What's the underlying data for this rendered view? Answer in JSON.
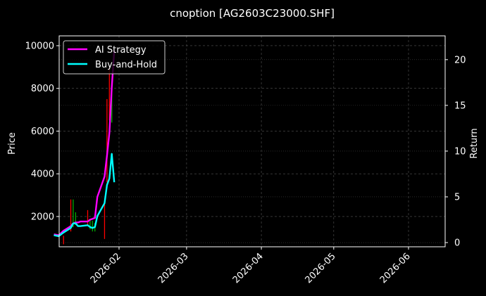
{
  "chart_data": {
    "type": "line",
    "title": "cnoption [AG2603C23000.SHF]",
    "xlabel": "",
    "ylabel": "Price",
    "ylabel_right": "Return",
    "ylim": [
      583,
      10460
    ],
    "ylim_right": [
      -0.46,
      22.6
    ],
    "x_tick_labels": [
      "2026-02",
      "2026-03",
      "2026-04",
      "2026-05",
      "2026-06"
    ],
    "y_ticks_left": [
      2000,
      4000,
      6000,
      8000,
      10000
    ],
    "y_ticks_right": [
      0,
      5,
      10,
      15,
      20
    ],
    "grid": true,
    "legend_position": "upper left",
    "background": "#000000",
    "series": [
      {
        "name": "AI Strategy",
        "color": "#ff00ff",
        "axis": "right",
        "x": [
          "2026-01-05",
          "2026-01-07",
          "2026-01-09",
          "2026-01-12",
          "2026-01-13",
          "2026-01-14",
          "2026-01-15",
          "2026-01-16",
          "2026-01-19",
          "2026-01-20",
          "2026-01-21",
          "2026-01-22",
          "2026-01-23",
          "2026-01-26",
          "2026-01-27",
          "2026-01-28",
          "2026-01-29",
          "2026-01-30"
        ],
        "values": [
          0.9,
          0.8,
          1.3,
          1.8,
          2.1,
          2.2,
          2.2,
          2.3,
          2.3,
          2.5,
          2.6,
          2.7,
          5.0,
          7.2,
          9.5,
          12.0,
          17.0,
          21.0
        ]
      },
      {
        "name": "Buy-and-Hold",
        "color": "#00ffff",
        "axis": "right",
        "x": [
          "2026-01-05",
          "2026-01-07",
          "2026-01-09",
          "2026-01-12",
          "2026-01-13",
          "2026-01-14",
          "2026-01-15",
          "2026-01-16",
          "2026-01-19",
          "2026-01-20",
          "2026-01-21",
          "2026-01-22",
          "2026-01-23",
          "2026-01-26",
          "2026-01-27",
          "2026-01-28",
          "2026-01-29",
          "2026-01-30"
        ],
        "values": [
          0.8,
          0.7,
          1.1,
          1.6,
          2.1,
          2.1,
          1.8,
          1.8,
          1.9,
          1.7,
          1.6,
          1.7,
          2.9,
          4.3,
          6.3,
          7.0,
          9.7,
          6.6
        ]
      }
    ],
    "candles": {
      "up_color": "#00aa00",
      "down_color": "#ff0000",
      "axis": "left",
      "items": [
        {
          "x": "2026-01-09",
          "low": 700,
          "high": 1100,
          "dir": "down"
        },
        {
          "x": "2026-01-12",
          "low": 1300,
          "high": 2800,
          "dir": "down"
        },
        {
          "x": "2026-01-13",
          "low": 1500,
          "high": 2800,
          "dir": "up"
        },
        {
          "x": "2026-01-14",
          "low": 1600,
          "high": 2200,
          "dir": "up"
        },
        {
          "x": "2026-01-19",
          "low": 1600,
          "high": 2300,
          "dir": "down"
        },
        {
          "x": "2026-01-20",
          "low": 1400,
          "high": 1900,
          "dir": "up"
        },
        {
          "x": "2026-01-21",
          "low": 1300,
          "high": 1800,
          "dir": "up"
        },
        {
          "x": "2026-01-22",
          "low": 1300,
          "high": 1700,
          "dir": "up"
        },
        {
          "x": "2026-01-26",
          "low": 950,
          "high": 2600,
          "dir": "down"
        },
        {
          "x": "2026-01-27",
          "low": 3600,
          "high": 7500,
          "dir": "down"
        },
        {
          "x": "2026-01-28",
          "low": 6500,
          "high": 9000,
          "dir": "down"
        },
        {
          "x": "2026-01-29",
          "low": 6400,
          "high": 8200,
          "dir": "up"
        }
      ]
    }
  },
  "legend": {
    "items": [
      {
        "label": "AI Strategy",
        "color": "#ff00ff"
      },
      {
        "label": "Buy-and-Hold",
        "color": "#00ffff"
      }
    ]
  }
}
